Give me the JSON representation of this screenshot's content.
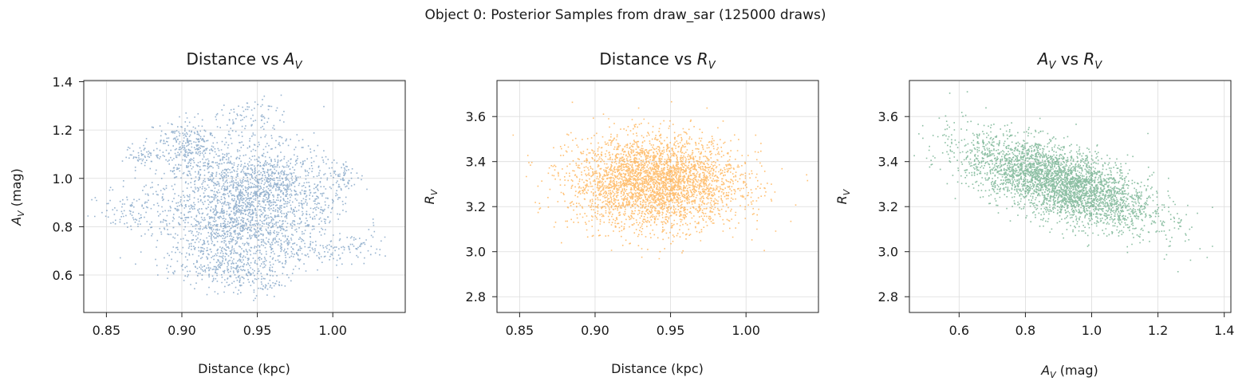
{
  "figure": {
    "suptitle": "Object 0: Posterior Samples from draw_sar (125000 draws)"
  },
  "chart_data": [
    {
      "type": "scatter",
      "title": "Distance vs A_V",
      "xlabel": "Distance (kpc)",
      "ylabel": "A_V (mag)",
      "xlim": [
        0.835,
        1.048
      ],
      "ylim": [
        0.445,
        1.405
      ],
      "xticks": [
        0.85,
        0.9,
        0.95,
        1.0
      ],
      "xtick_labels": [
        "0.85",
        "0.90",
        "0.95",
        "1.00"
      ],
      "yticks": [
        0.6,
        0.8,
        1.0,
        1.2,
        1.4
      ],
      "ytick_labels": [
        "0.6",
        "0.8",
        "1.0",
        "1.2",
        "1.4"
      ],
      "grid": true,
      "color": "#4477aa",
      "n_draws": 125000,
      "clusters": [
        {
          "x": 0.935,
          "y": 0.93,
          "sx": 0.022,
          "sy": 0.12,
          "w": 30
        },
        {
          "x": 0.955,
          "y": 0.8,
          "sx": 0.02,
          "sy": 0.1,
          "w": 14
        },
        {
          "x": 0.915,
          "y": 0.75,
          "sx": 0.018,
          "sy": 0.08,
          "w": 8
        },
        {
          "x": 0.965,
          "y": 1.0,
          "sx": 0.015,
          "sy": 0.07,
          "w": 8
        },
        {
          "x": 0.905,
          "y": 1.1,
          "sx": 0.012,
          "sy": 0.05,
          "w": 5
        },
        {
          "x": 0.9,
          "y": 1.18,
          "sx": 0.008,
          "sy": 0.03,
          "w": 2
        },
        {
          "x": 0.945,
          "y": 1.26,
          "sx": 0.01,
          "sy": 0.04,
          "w": 2
        },
        {
          "x": 0.875,
          "y": 1.1,
          "sx": 0.007,
          "sy": 0.02,
          "w": 1.5
        },
        {
          "x": 0.87,
          "y": 0.88,
          "sx": 0.012,
          "sy": 0.05,
          "w": 3
        },
        {
          "x": 1.008,
          "y": 1.01,
          "sx": 0.006,
          "sy": 0.03,
          "w": 1.5
        },
        {
          "x": 1.015,
          "y": 0.72,
          "sx": 0.01,
          "sy": 0.03,
          "w": 1.5
        },
        {
          "x": 0.99,
          "y": 0.9,
          "sx": 0.012,
          "sy": 0.06,
          "w": 3
        },
        {
          "x": 0.93,
          "y": 0.62,
          "sx": 0.015,
          "sy": 0.04,
          "w": 4
        },
        {
          "x": 0.95,
          "y": 0.57,
          "sx": 0.008,
          "sy": 0.03,
          "w": 1.5
        },
        {
          "x": 0.985,
          "y": 0.7,
          "sx": 0.015,
          "sy": 0.03,
          "w": 2
        }
      ]
    },
    {
      "type": "scatter",
      "title": "Distance vs R_V",
      "xlabel": "Distance (kpc)",
      "ylabel": "R_V",
      "xlim": [
        0.835,
        1.048
      ],
      "ylim": [
        2.73,
        3.76
      ],
      "xticks": [
        0.85,
        0.9,
        0.95,
        1.0
      ],
      "xtick_labels": [
        "0.85",
        "0.90",
        "0.95",
        "1.00"
      ],
      "yticks": [
        2.8,
        3.0,
        3.2,
        3.4,
        3.6
      ],
      "ytick_labels": [
        "2.8",
        "3.0",
        "3.2",
        "3.4",
        "3.6"
      ],
      "grid": true,
      "color": "#ff8c00",
      "n_draws": 125000,
      "clusters": [
        {
          "x": 0.94,
          "y": 3.31,
          "sx": 0.028,
          "sy": 0.1,
          "w": 1
        }
      ]
    },
    {
      "type": "scatter",
      "title": "A_V vs R_V",
      "xlabel": "A_V (mag)",
      "ylabel": "R_V",
      "xlim": [
        0.45,
        1.42
      ],
      "ylim": [
        2.73,
        3.76
      ],
      "xticks": [
        0.6,
        0.8,
        1.0,
        1.2,
        1.4
      ],
      "xtick_labels": [
        "0.6",
        "0.8",
        "1.0",
        "1.2",
        "1.4"
      ],
      "yticks": [
        2.8,
        3.0,
        3.2,
        3.4,
        3.6
      ],
      "ytick_labels": [
        "2.8",
        "3.0",
        "3.2",
        "3.4",
        "3.6"
      ],
      "grid": true,
      "color": "#2e8b57",
      "n_draws": 125000,
      "correlation": -0.62,
      "clusters": [
        {
          "x": 0.9,
          "y": 3.31,
          "sx": 0.14,
          "sy": 0.1,
          "w": 1
        }
      ]
    }
  ]
}
